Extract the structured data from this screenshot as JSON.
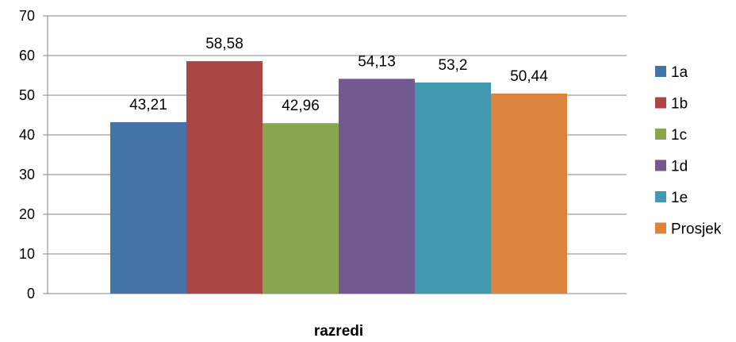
{
  "chart_data": {
    "type": "bar",
    "title": "",
    "xlabel": "razredi",
    "ylabel": "",
    "ylim": [
      0,
      70
    ],
    "yticks": [
      "0",
      "10",
      "20",
      "30",
      "40",
      "50",
      "60",
      "70"
    ],
    "grid": true,
    "legend_position": "right",
    "series": [
      {
        "name": "1a",
        "value": 43.21,
        "label": "43,21",
        "color": "#4572A7"
      },
      {
        "name": "1b",
        "value": 58.58,
        "label": "58,58",
        "color": "#AA4643"
      },
      {
        "name": "1c",
        "value": 42.96,
        "label": "42,96",
        "color": "#89A54E"
      },
      {
        "name": "1d",
        "value": 54.13,
        "label": "54,13",
        "color": "#71588F"
      },
      {
        "name": "1e",
        "value": 53.2,
        "label": "53,2",
        "color": "#4198AF"
      },
      {
        "name": "Prosjek",
        "value": 50.44,
        "label": "50,44",
        "color": "#DB843D"
      }
    ]
  }
}
